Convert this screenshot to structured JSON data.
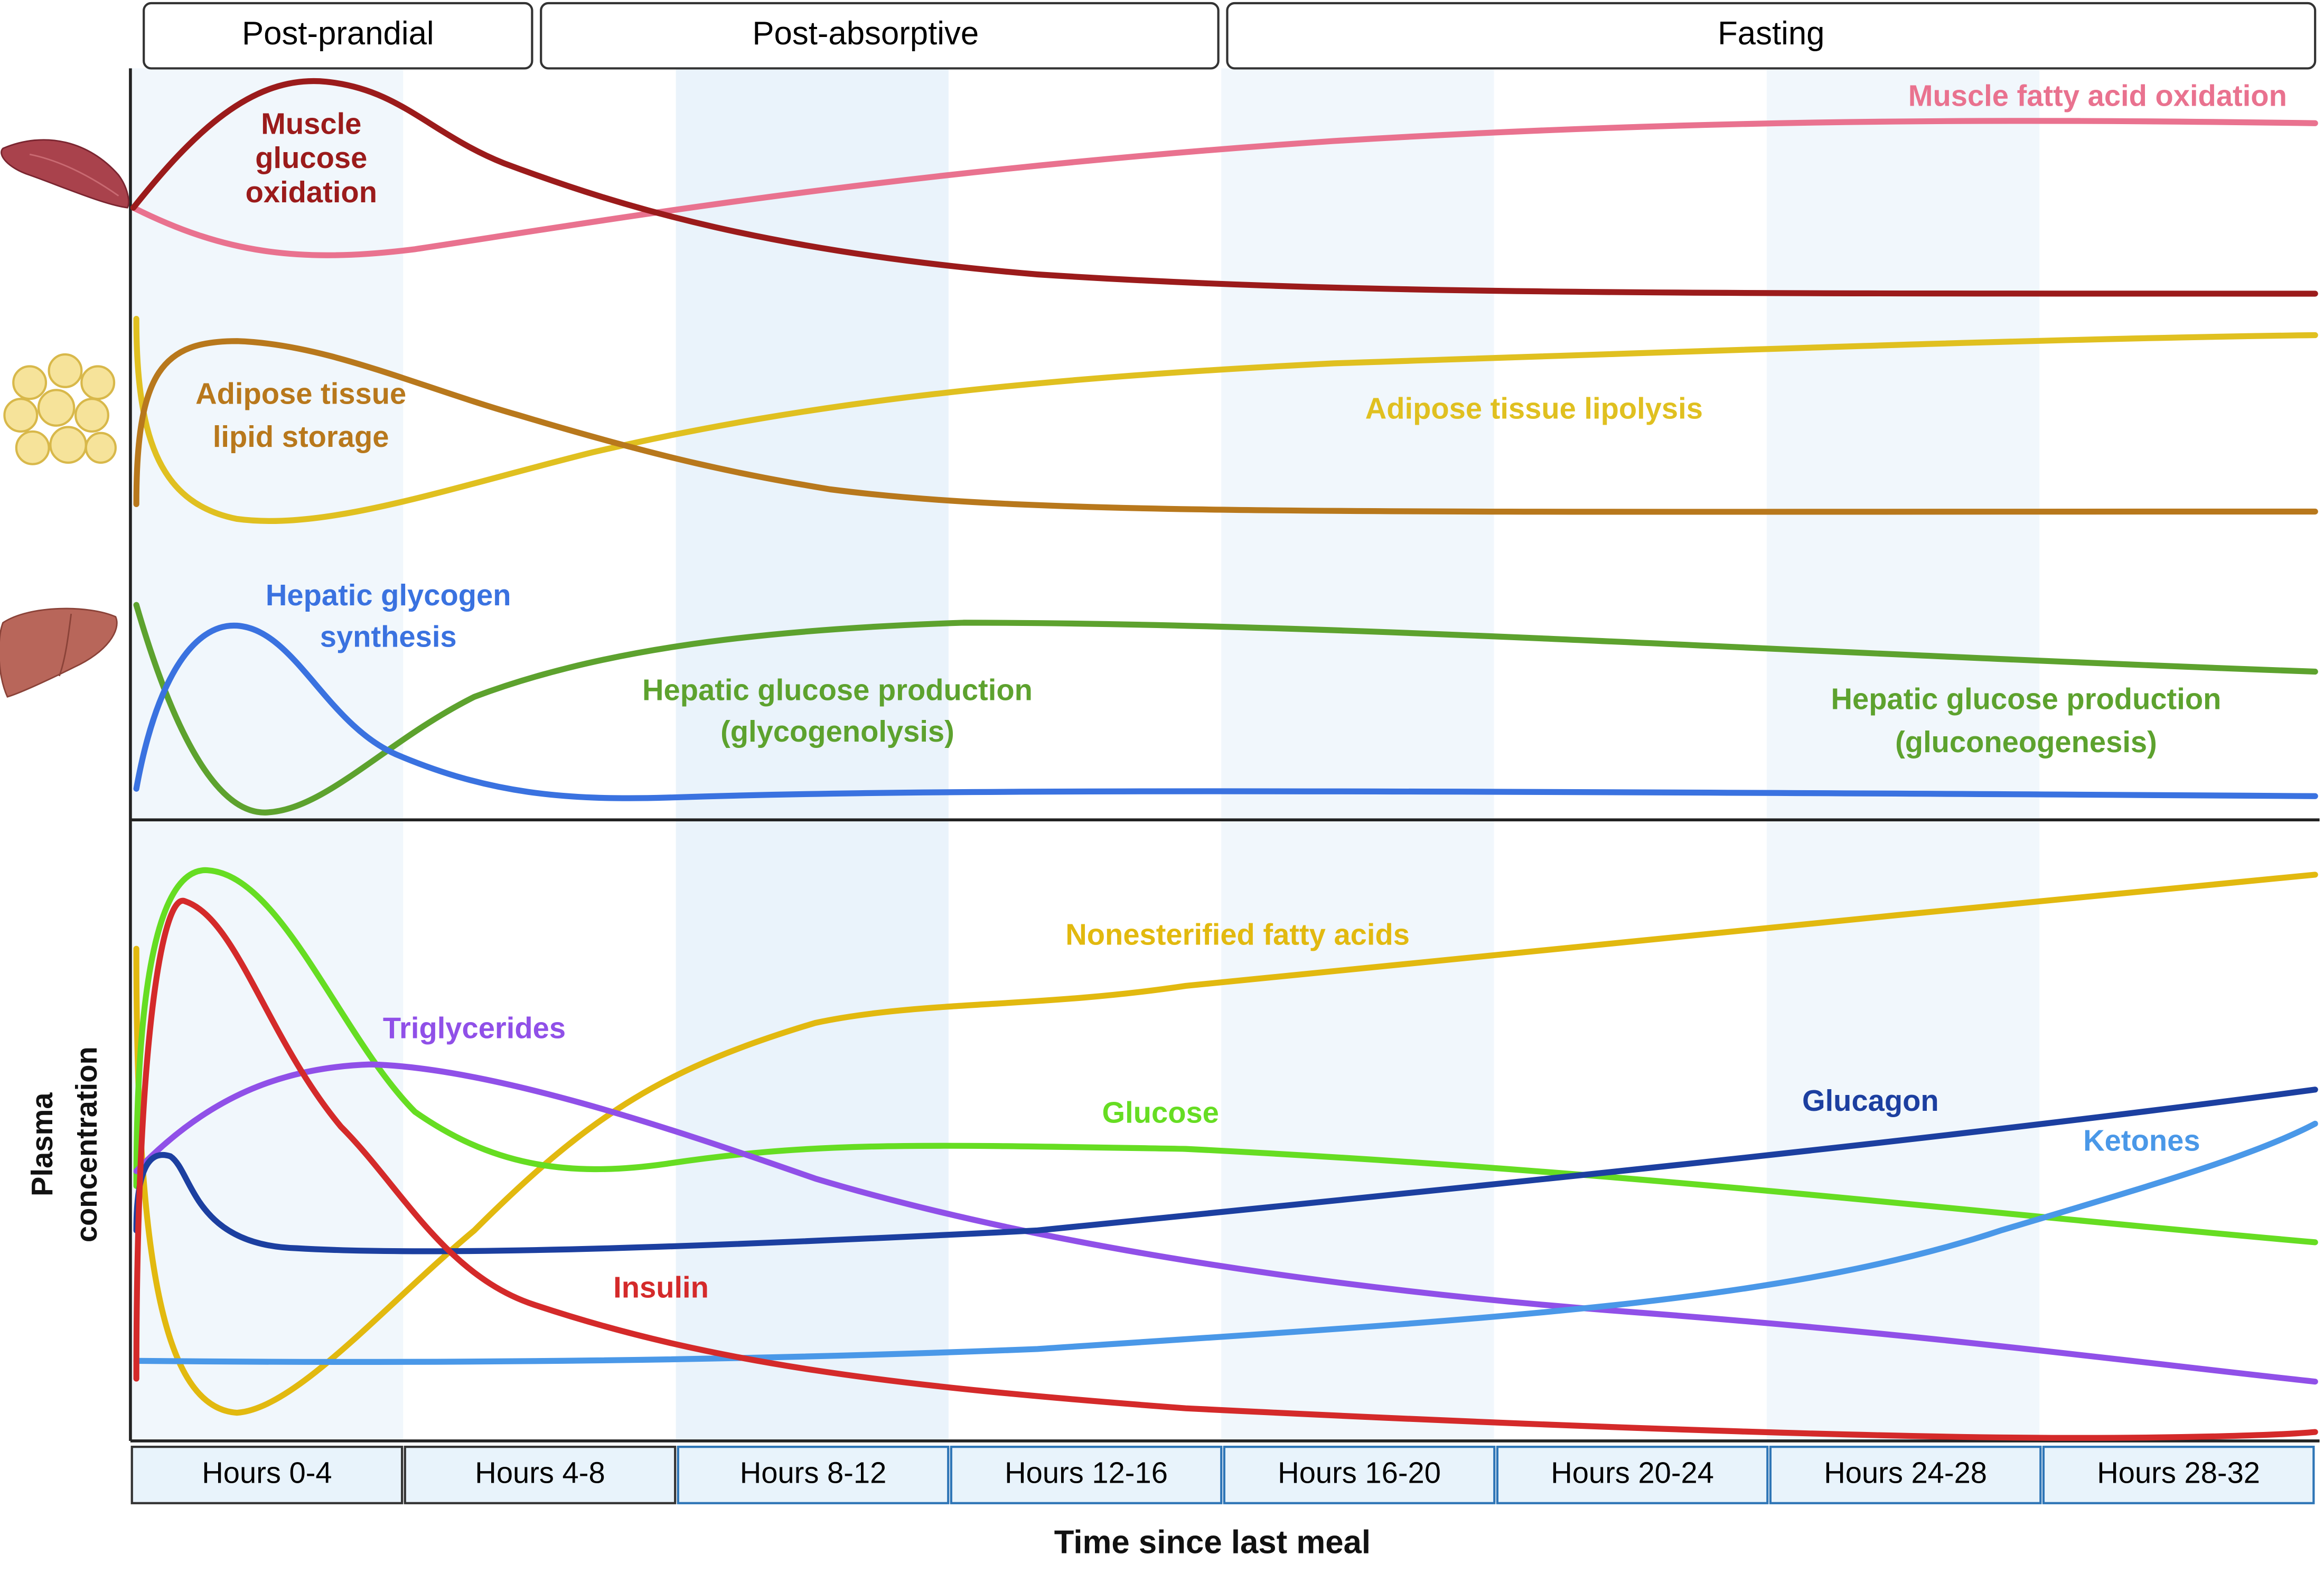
{
  "phases": [
    "Post-prandial",
    "Post-absorptive",
    "Fasting"
  ],
  "time_bins": [
    "Hours 0-4",
    "Hours 4-8",
    "Hours 8-12",
    "Hours 12-16",
    "Hours 16-20",
    "Hours 20-24",
    "Hours 24-28",
    "Hours 28-32"
  ],
  "x_axis_label": "Time since last meal",
  "y_axis_label": [
    "Plasma",
    "concentration"
  ],
  "muscle": {
    "fatty_acid_oxidation": "Muscle fatty acid oxidation",
    "glucose_oxidation": [
      "Muscle",
      "glucose",
      "oxidation"
    ]
  },
  "adipose": {
    "lipid_storage": [
      "Adipose tissue",
      "lipid storage"
    ],
    "lipolysis": "Adipose tissue lipolysis"
  },
  "liver": {
    "glycogen_synthesis": [
      "Hepatic glycogen",
      "synthesis"
    ],
    "glycogenolysis": [
      "Hepatic glucose production",
      "(glycogenolysis)"
    ],
    "gluconeogenesis": [
      "Hepatic glucose production",
      "(gluconeogenesis)"
    ]
  },
  "plasma": {
    "nefa": "Nonesterified fatty acids",
    "triglycerides": "Triglycerides",
    "glucose": "Glucose",
    "glucagon": "Glucagon",
    "ketones": "Ketones",
    "insulin": "Insulin"
  }
}
